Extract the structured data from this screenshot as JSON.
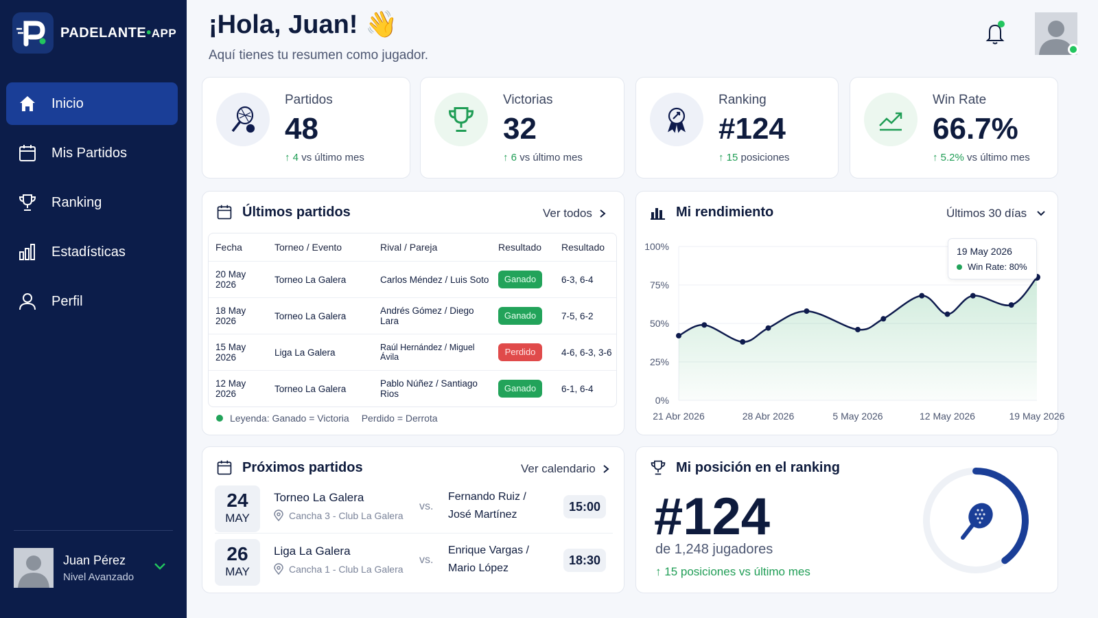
{
  "brand": {
    "name": "PADELANTE",
    "dot": "•",
    "suffix": "APP"
  },
  "sidebar": {
    "items": [
      {
        "label": "Inicio",
        "icon": "home-icon",
        "active": true
      },
      {
        "label": "Mis Partidos",
        "icon": "calendar-icon"
      },
      {
        "label": "Ranking",
        "icon": "trophy-icon"
      },
      {
        "label": "Estadísticas",
        "icon": "bar-chart-icon"
      },
      {
        "label": "Perfil",
        "icon": "user-icon"
      }
    ],
    "user": {
      "name": "Juan Pérez",
      "level": "Nivel Avanzado"
    }
  },
  "header": {
    "greeting": "¡Hola, Juan! 👋",
    "subtitle": "Aquí tienes tu resumen como jugador."
  },
  "stats": [
    {
      "label": "Partidos",
      "value": "48",
      "delta_value": "4",
      "delta_text": "vs último mes",
      "icon": "padel-racket-icon"
    },
    {
      "label": "Victorias",
      "value": "32",
      "delta_value": "6",
      "delta_text": "vs último mes",
      "icon": "trophy-icon"
    },
    {
      "label": "Ranking",
      "value": "#124",
      "delta_value": "15",
      "delta_text": "posiciones",
      "icon": "medal-icon"
    },
    {
      "label": "Win Rate",
      "value": "66.7%",
      "delta_value": "5.2%",
      "delta_text": "vs último mes",
      "icon": "trend-up-icon"
    }
  ],
  "recent": {
    "title": "Últimos partidos",
    "link": "Ver todos",
    "columns": [
      "Fecha",
      "Torneo / Evento",
      "Rival / Pareja",
      "Resultado",
      "Resultado"
    ],
    "rows": [
      {
        "date": "20 May 2026",
        "event": "Torneo La Galera",
        "rival": "Carlos Méndez / Luis Soto",
        "status": "Ganado",
        "score": "6-3, 6-4",
        "win": true
      },
      {
        "date": "18 May 2026",
        "event": "Torneo La Galera",
        "rival": "Andrés Gómez / Diego Lara",
        "status": "Ganado",
        "score": "7-5, 6-2",
        "win": true
      },
      {
        "date": "15 May 2026",
        "event": "Liga La Galera",
        "rival": "Raúl Hernández / Miguel Ávila",
        "status": "Perdido",
        "score": "4-6, 6-3, 3-6",
        "win": false
      },
      {
        "date": "12 May 2026",
        "event": "Torneo La Galera",
        "rival": "Pablo Núñez / Santiago Rios",
        "status": "Ganado",
        "score": "6-1, 6-4",
        "win": true
      }
    ],
    "legend_win": "Leyenda: Ganado = Victoria",
    "legend_loss": "Perdido = Derrota"
  },
  "performance": {
    "title": "Mi rendimiento",
    "period": "Últimos 30 días",
    "tooltip_date": "19 May 2026",
    "tooltip_text": "Win Rate: 80%"
  },
  "chart_data": {
    "type": "area",
    "x": [
      "21 Abr 2026",
      "23 Abr 2026",
      "26 Abr 2026",
      "28 Abr 2026",
      "1 May 2026",
      "5 May 2026",
      "7 May 2026",
      "10 May 2026",
      "12 May 2026",
      "14 May 2026",
      "17 May 2026",
      "19 May 2026"
    ],
    "x_ticks": [
      "21 Abr 2026",
      "28 Abr 2026",
      "5 May 2026",
      "12 May 2026",
      "19 May 2026"
    ],
    "y_ticks": [
      "0%",
      "25%",
      "50%",
      "75%",
      "100%"
    ],
    "values": [
      42,
      49,
      38,
      47,
      58,
      46,
      53,
      68,
      56,
      68,
      62,
      80
    ],
    "ylim": [
      0,
      100
    ],
    "grid": true,
    "color": "#0e1b4d"
  },
  "upcoming": {
    "title": "Próximos partidos",
    "link": "Ver calendario",
    "vs": "vs.",
    "matches": [
      {
        "day": "24",
        "month": "MAY",
        "event": "Torneo La Galera",
        "venue": "Cancha 3 - Club La Galera",
        "opp1": "Fernando Ruiz /",
        "opp2": "José Martínez",
        "time": "15:00"
      },
      {
        "day": "26",
        "month": "MAY",
        "event": "Liga La Galera",
        "venue": "Cancha 1 - Club La Galera",
        "opp1": "Enrique Vargas /",
        "opp2": "Mario López",
        "time": "18:30"
      }
    ]
  },
  "ranking_card": {
    "title": "Mi posición en el ranking",
    "rank": "#124",
    "of_text": "de 1,248 jugadores",
    "delta": "15 posiciones vs último mes",
    "progress": 0.4
  }
}
